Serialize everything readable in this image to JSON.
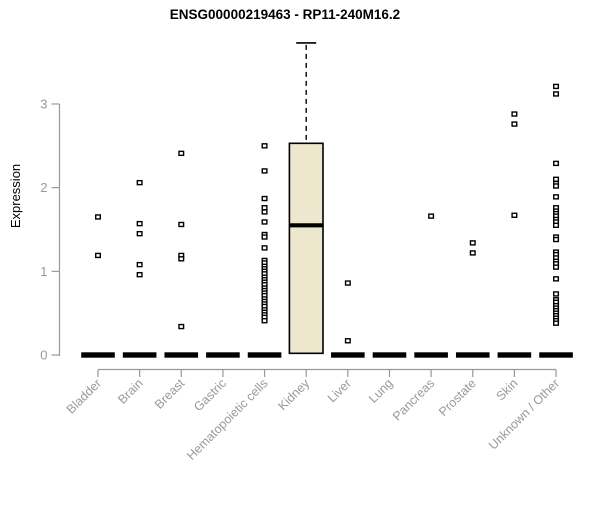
{
  "chart_data": {
    "type": "boxplot",
    "title": "ENSG00000219463 - RP11-240M16.2",
    "xlabel": "",
    "ylabel": "Expression",
    "ylim": [
      0,
      3.85
    ],
    "yticks": [
      "0",
      "1",
      "2",
      "3"
    ],
    "grid": false,
    "legend": false,
    "categories": [
      "Bladder",
      "Brain",
      "Breast",
      "Gastric",
      "Hematopoietic cells",
      "Kidney",
      "Liver",
      "Lung",
      "Pancreas",
      "Prostate",
      "Skin",
      "Unknown / Other"
    ],
    "boxes": [
      {
        "category": "Bladder",
        "median": 0,
        "q1": 0,
        "q3": 0,
        "whisker_low": 0,
        "whisker_high": 0,
        "points": [
          1.65,
          1.19
        ]
      },
      {
        "category": "Brain",
        "median": 0,
        "q1": 0,
        "q3": 0,
        "whisker_low": 0,
        "whisker_high": 0,
        "points": [
          2.06,
          1.57,
          1.45,
          1.08,
          0.96
        ]
      },
      {
        "category": "Breast",
        "median": 0,
        "q1": 0,
        "q3": 0,
        "whisker_low": 0,
        "whisker_high": 0,
        "points": [
          2.41,
          1.56,
          1.19,
          1.15,
          0.34
        ]
      },
      {
        "category": "Gastric",
        "median": 0,
        "q1": 0,
        "q3": 0,
        "whisker_low": 0,
        "whisker_high": 0,
        "points": []
      },
      {
        "category": "Hematopoietic cells",
        "median": 0,
        "q1": 0,
        "q3": 0,
        "whisker_low": 0,
        "whisker_high": 0,
        "points": [
          2.5,
          2.2,
          1.87,
          1.76,
          1.71,
          1.59,
          1.44,
          1.41,
          1.28,
          1.13,
          1.1,
          1.06,
          1.03,
          1.0,
          0.97,
          0.93,
          0.9,
          0.87,
          0.84,
          0.8,
          0.77,
          0.74,
          0.71,
          0.67,
          0.64,
          0.61,
          0.58,
          0.54,
          0.51,
          0.48,
          0.45,
          0.41
        ]
      },
      {
        "category": "Kidney",
        "median": 1.55,
        "q1": 0.02,
        "q3": 2.53,
        "whisker_low": 0.02,
        "whisker_high": 3.73,
        "points": []
      },
      {
        "category": "Liver",
        "median": 0,
        "q1": 0,
        "q3": 0,
        "whisker_low": 0,
        "whisker_high": 0,
        "points": [
          0.86,
          0.17
        ]
      },
      {
        "category": "Lung",
        "median": 0,
        "q1": 0,
        "q3": 0,
        "whisker_low": 0,
        "whisker_high": 0,
        "points": []
      },
      {
        "category": "Pancreas",
        "median": 0,
        "q1": 0,
        "q3": 0,
        "whisker_low": 0,
        "whisker_high": 0,
        "points": [
          1.66
        ]
      },
      {
        "category": "Prostate",
        "median": 0,
        "q1": 0,
        "q3": 0,
        "whisker_low": 0,
        "whisker_high": 0,
        "points": [
          1.34,
          1.22
        ]
      },
      {
        "category": "Skin",
        "median": 0,
        "q1": 0,
        "q3": 0,
        "whisker_low": 0,
        "whisker_high": 0,
        "points": [
          2.88,
          2.76,
          1.67
        ]
      },
      {
        "category": "Unknown / Other",
        "median": 0,
        "q1": 0,
        "q3": 0,
        "whisker_low": 0,
        "whisker_high": 0,
        "points": [
          3.21,
          3.12,
          2.29,
          2.1,
          2.05,
          2.02,
          1.89,
          1.76,
          1.72,
          1.69,
          1.66,
          1.62,
          1.59,
          1.55,
          1.41,
          1.38,
          1.23,
          1.2,
          1.16,
          1.12,
          1.09,
          1.05,
          0.91,
          0.73,
          0.66,
          0.63,
          0.59,
          0.56,
          0.53,
          0.5,
          0.47,
          0.44,
          0.41,
          0.38
        ]
      }
    ],
    "style": {
      "box_fill": "#ECE7CD",
      "box_stroke": "#000000",
      "median_color": "#000000",
      "zero_bar_color": "#000000",
      "marker": "open-square",
      "marker_stroke": "#000000",
      "marker_fill": "#ffffff",
      "axis_color": "#999999",
      "label_color": "#999999",
      "title_color": "#000000",
      "background": "#ffffff"
    }
  }
}
